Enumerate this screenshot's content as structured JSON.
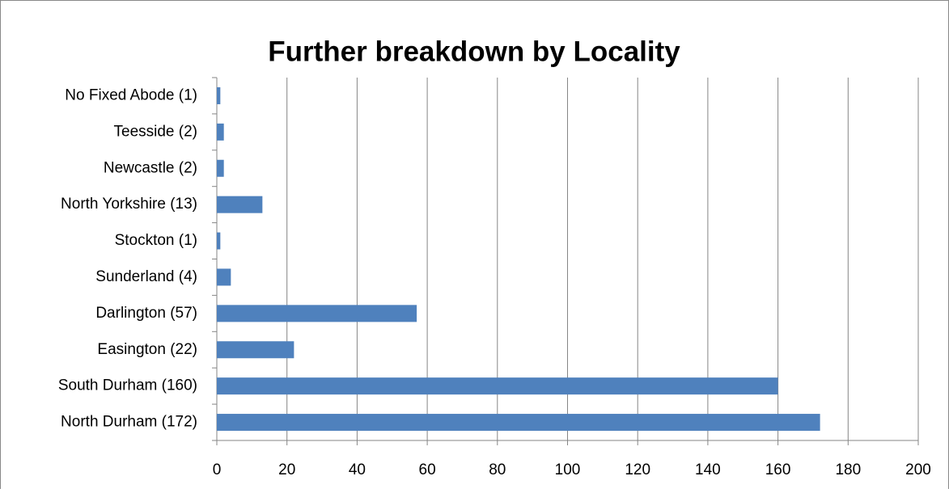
{
  "chart_data": {
    "type": "bar",
    "orientation": "horizontal",
    "title": "Further breakdown by Locality",
    "categories": [
      "No Fixed Abode (1)",
      "Teesside (2)",
      "Newcastle (2)",
      "North Yorkshire (13)",
      "Stockton (1)",
      "Sunderland (4)",
      "Darlington (57)",
      "Easington (22)",
      "South Durham (160)",
      "North Durham (172)"
    ],
    "values": [
      1,
      2,
      2,
      13,
      1,
      4,
      57,
      22,
      160,
      172
    ],
    "color": "#4f81bd",
    "xlim": [
      0,
      200
    ],
    "xticks": [
      0,
      20,
      40,
      60,
      80,
      100,
      120,
      140,
      160,
      180,
      200
    ],
    "grid": true
  }
}
